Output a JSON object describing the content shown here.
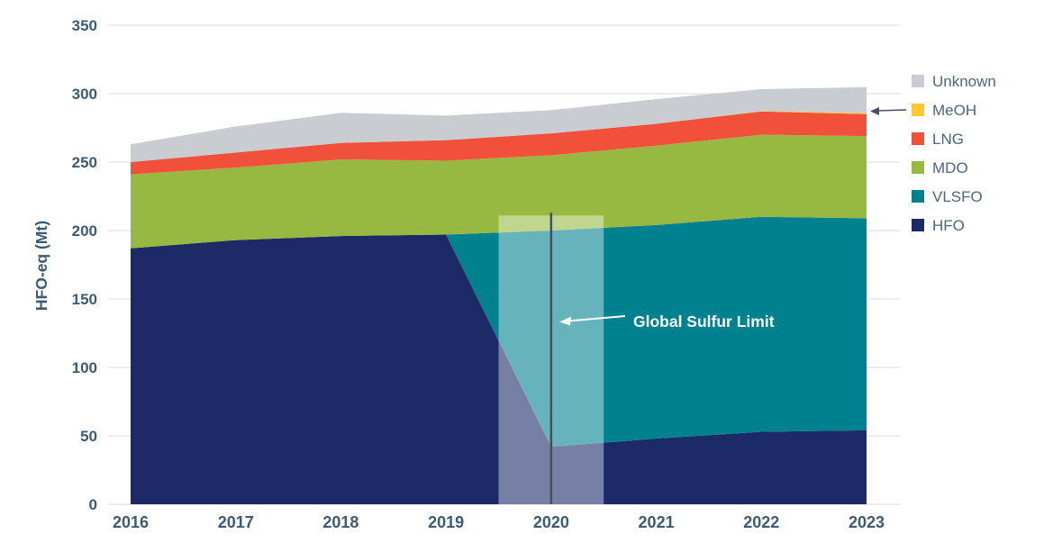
{
  "legend": {
    "items": [
      {
        "label": "Unknown",
        "color": "#c9cdd2"
      },
      {
        "label": "MeOH",
        "color": "#fcc92e"
      },
      {
        "label": "LNG",
        "color": "#f1503a"
      },
      {
        "label": "MDO",
        "color": "#97b942"
      },
      {
        "label": "VLSFO",
        "color": "#00818f"
      },
      {
        "label": "HFO",
        "color": "#1c2a68"
      }
    ]
  },
  "annotation": {
    "label": "Global Sulfur Limit"
  },
  "chart_data": {
    "type": "area",
    "stacked": true,
    "title": "",
    "xlabel": "",
    "ylabel": "HFO-eq (Mt)",
    "x": [
      2016,
      2017,
      2018,
      2019,
      2020,
      2021,
      2022,
      2023
    ],
    "series": [
      {
        "name": "HFO",
        "color": "#1c2a68",
        "values": [
          187,
          193,
          196,
          197,
          42,
          48,
          53,
          54
        ]
      },
      {
        "name": "VLSFO",
        "color": "#00818f",
        "values": [
          0,
          0,
          0,
          0,
          158,
          156,
          157,
          155
        ]
      },
      {
        "name": "MDO",
        "color": "#97b942",
        "values": [
          54,
          53,
          56,
          54,
          55,
          58,
          60,
          60
        ]
      },
      {
        "name": "LNG",
        "color": "#f1503a",
        "values": [
          9,
          11,
          12,
          15,
          16,
          16,
          17,
          16
        ]
      },
      {
        "name": "MeOH",
        "color": "#fcc92e",
        "values": [
          0,
          0,
          0,
          0,
          0,
          0,
          0.3,
          0.8
        ]
      },
      {
        "name": "Unknown",
        "color": "#c9cdd2",
        "values": [
          13,
          19,
          22,
          18,
          17,
          18,
          16,
          19
        ]
      }
    ],
    "ylim": [
      0,
      350
    ],
    "yticks": [
      0,
      50,
      100,
      150,
      200,
      250,
      300,
      350
    ],
    "grid": true,
    "grid_color": "#ececec",
    "axis_text_color": "#3d5a75",
    "legend_position": "right",
    "legend_order": [
      "Unknown",
      "MeOH",
      "LNG",
      "MDO",
      "VLSFO",
      "HFO"
    ],
    "annotation": {
      "label": "Global Sulfur Limit",
      "label_color": "#ffffff",
      "line_x": 2020,
      "line_color": "#44505e",
      "band_x": [
        2019.5,
        2020.5
      ],
      "band_top": 211,
      "band_fill": "rgba(255,255,255,0.40)"
    },
    "meoh_pointer": {
      "points_to": "MeOH",
      "color": "#44505e"
    }
  }
}
